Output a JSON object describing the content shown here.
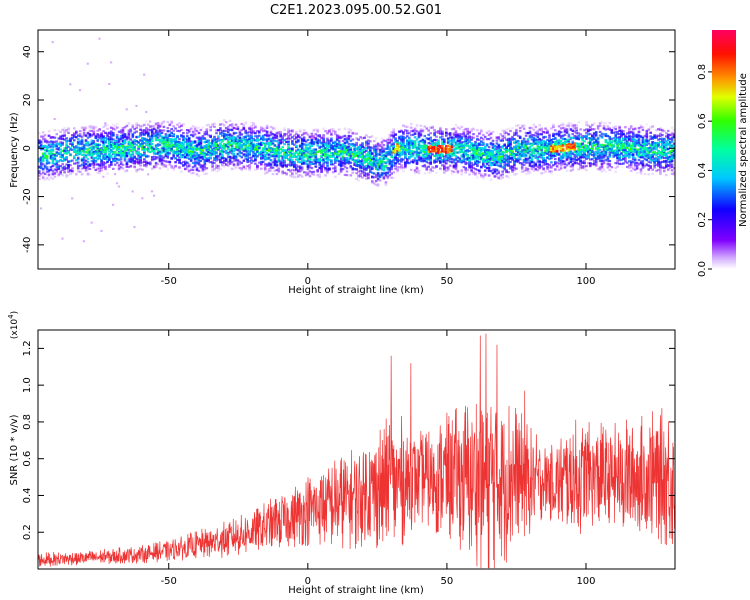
{
  "figure": {
    "title": "C2E1.2023.095.00.52.G01"
  },
  "chart_data": [
    {
      "type": "heatmap",
      "xlabel": "Height of straight line (km)",
      "ylabel": "Frequency (Hz)",
      "xlim": [
        -97,
        132
      ],
      "ylim": [
        -50,
        49
      ],
      "xticks": [
        -50,
        0,
        50,
        100
      ],
      "yticks": [
        -40,
        -20,
        0,
        20,
        40
      ],
      "colorbar": {
        "label": "Normalized spectral amplitude",
        "range": [
          0.0,
          0.97
        ],
        "ticks": [
          0.0,
          0.2,
          0.4,
          0.6,
          0.8
        ],
        "colormap": "gist_rainbow_r"
      },
      "ridge_center_hz": [
        [
          -97,
          -3
        ],
        [
          -85,
          -1
        ],
        [
          -75,
          0
        ],
        [
          -60,
          1
        ],
        [
          -50,
          2
        ],
        [
          -40,
          -1
        ],
        [
          -30,
          2
        ],
        [
          -20,
          1
        ],
        [
          -10,
          -1
        ],
        [
          0,
          -2
        ],
        [
          10,
          -1
        ],
        [
          20,
          -3
        ],
        [
          25,
          -6
        ],
        [
          28,
          -5
        ],
        [
          32,
          1
        ],
        [
          40,
          0
        ],
        [
          45,
          0
        ],
        [
          52,
          0
        ],
        [
          58,
          -1
        ],
        [
          63,
          -2
        ],
        [
          68,
          -3
        ],
        [
          75,
          0
        ],
        [
          85,
          0
        ],
        [
          95,
          1
        ],
        [
          110,
          1
        ],
        [
          120,
          0
        ],
        [
          132,
          -1
        ]
      ],
      "strong_segments": [
        {
          "x": [
            30,
            33
          ],
          "peak": 0.85
        },
        {
          "x": [
            43,
            52
          ],
          "peak": 0.95
        },
        {
          "x": [
            87,
            96
          ],
          "peak": 0.9
        }
      ]
    },
    {
      "type": "line",
      "xlabel": "Height of straight line (km)",
      "ylabel": "SNR (10 * v/v)",
      "scale_label": "(x10^4)",
      "scale_base": "(x10",
      "scale_exp": "4",
      "scale_close": ")",
      "xlim": [
        -97,
        132
      ],
      "ylim": [
        0.0,
        1.3
      ],
      "xticks": [
        -50,
        0,
        50,
        100
      ],
      "yticks": [
        0.2,
        0.4,
        0.6,
        0.8,
        1.0,
        1.2
      ],
      "color": "#ee3333",
      "envelope": {
        "x": [
          -97,
          -80,
          -60,
          -50,
          -40,
          -30,
          -20,
          -10,
          0,
          10,
          20,
          25,
          30,
          35,
          40,
          45,
          50,
          55,
          60,
          65,
          70,
          75,
          80,
          85,
          90,
          95,
          100,
          110,
          120,
          132
        ],
        "mean": [
          0.05,
          0.06,
          0.08,
          0.1,
          0.13,
          0.16,
          0.2,
          0.26,
          0.32,
          0.36,
          0.4,
          0.44,
          0.46,
          0.48,
          0.5,
          0.5,
          0.5,
          0.5,
          0.5,
          0.5,
          0.5,
          0.5,
          0.48,
          0.48,
          0.47,
          0.48,
          0.5,
          0.5,
          0.5,
          0.5
        ],
        "spread": [
          0.04,
          0.04,
          0.05,
          0.06,
          0.08,
          0.1,
          0.12,
          0.16,
          0.2,
          0.25,
          0.3,
          0.35,
          0.4,
          0.35,
          0.25,
          0.3,
          0.35,
          0.4,
          0.5,
          0.55,
          0.5,
          0.4,
          0.3,
          0.2,
          0.25,
          0.35,
          0.3,
          0.3,
          0.35,
          0.4
        ]
      },
      "peaks": [
        [
          30,
          1.16
        ],
        [
          37,
          1.12
        ],
        [
          62,
          1.27
        ],
        [
          64,
          1.28
        ],
        [
          68,
          1.22
        ],
        [
          78,
          0.97
        ],
        [
          133,
          1.08
        ]
      ]
    }
  ]
}
